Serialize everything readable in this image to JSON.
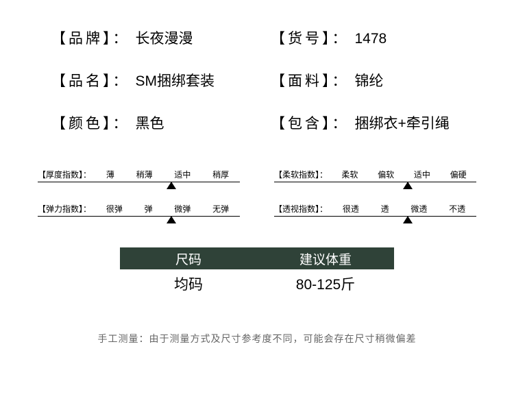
{
  "specs": {
    "brand_label": "【品牌】：",
    "brand_value": "长夜漫漫",
    "sku_label": "【货号】：",
    "sku_value": "1478",
    "name_label": "【品名】：",
    "name_value": "SM捆绑套装",
    "material_label": "【面料】：",
    "material_value": "锦纶",
    "color_label": "【颜色】：",
    "color_value": "黑色",
    "includes_label": "【包含】：",
    "includes_value": "捆绑衣+牵引绳"
  },
  "indexes": {
    "thickness": {
      "title": "【厚度指数】：",
      "opts": [
        "薄",
        "稍薄",
        "适中",
        "稍厚"
      ],
      "marker_percent": 66
    },
    "elasticity": {
      "title": "【弹力指数】：",
      "opts": [
        "很弹",
        "弹",
        "微弹",
        "无弹"
      ],
      "marker_percent": 66
    },
    "softness": {
      "title": "【柔软指数】：",
      "opts": [
        "柔软",
        "偏软",
        "适中",
        "偏硬"
      ],
      "marker_percent": 66
    },
    "transparency": {
      "title": "【透视指数】：",
      "opts": [
        "很透",
        "透",
        "微透",
        "不透"
      ],
      "marker_percent": 66
    }
  },
  "size": {
    "col1_header": "尺码",
    "col2_header": "建议体重",
    "col1_value": "均码",
    "col2_value": "80-125斤"
  },
  "footnote": "手工测量：由于测量方式及尺寸参考度不同，可能会存在尺寸稍微偏差"
}
